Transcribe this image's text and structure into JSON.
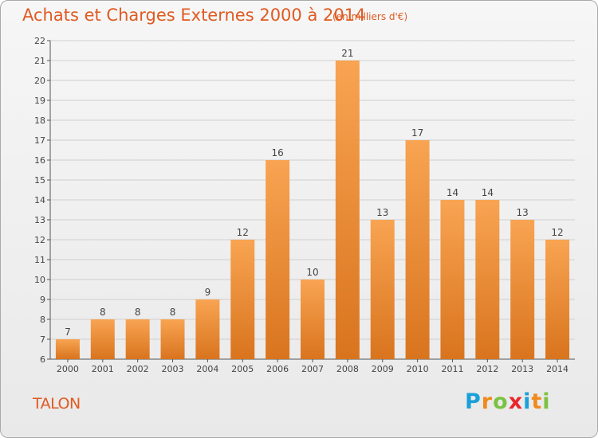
{
  "header": {
    "title": "Achats et Charges Externes 2000 à 2014",
    "unit": "(en milliers d'€)"
  },
  "footer": {
    "place": "TALON",
    "logo": [
      "P",
      "r",
      "o",
      "x",
      "i",
      "t",
      "i"
    ],
    "logo_colors": [
      "#1aa0d8",
      "#f08a1c",
      "#7cc242",
      "#e8262d",
      "#1aa0d8",
      "#f08a1c",
      "#7cc242"
    ]
  },
  "colors": {
    "bar_top": "#f8a452",
    "bar_bottom": "#d9741e",
    "accent": "#e05a22",
    "grid": "#cfcfcf"
  },
  "chart_data": {
    "type": "bar",
    "title": "Achats et Charges Externes 2000 à 2014",
    "subtitle": "(en milliers d'€)",
    "categories": [
      "2000",
      "2001",
      "2002",
      "2003",
      "2004",
      "2005",
      "2006",
      "2007",
      "2008",
      "2009",
      "2010",
      "2011",
      "2012",
      "2013",
      "2014"
    ],
    "values": [
      7,
      8,
      8,
      8,
      9,
      12,
      16,
      10,
      21,
      13,
      17,
      14,
      14,
      13,
      12
    ],
    "ylim": [
      6,
      22
    ],
    "yticks": [
      6,
      7,
      8,
      9,
      10,
      11,
      12,
      13,
      14,
      15,
      16,
      17,
      18,
      19,
      20,
      21,
      22
    ],
    "grid": true
  }
}
